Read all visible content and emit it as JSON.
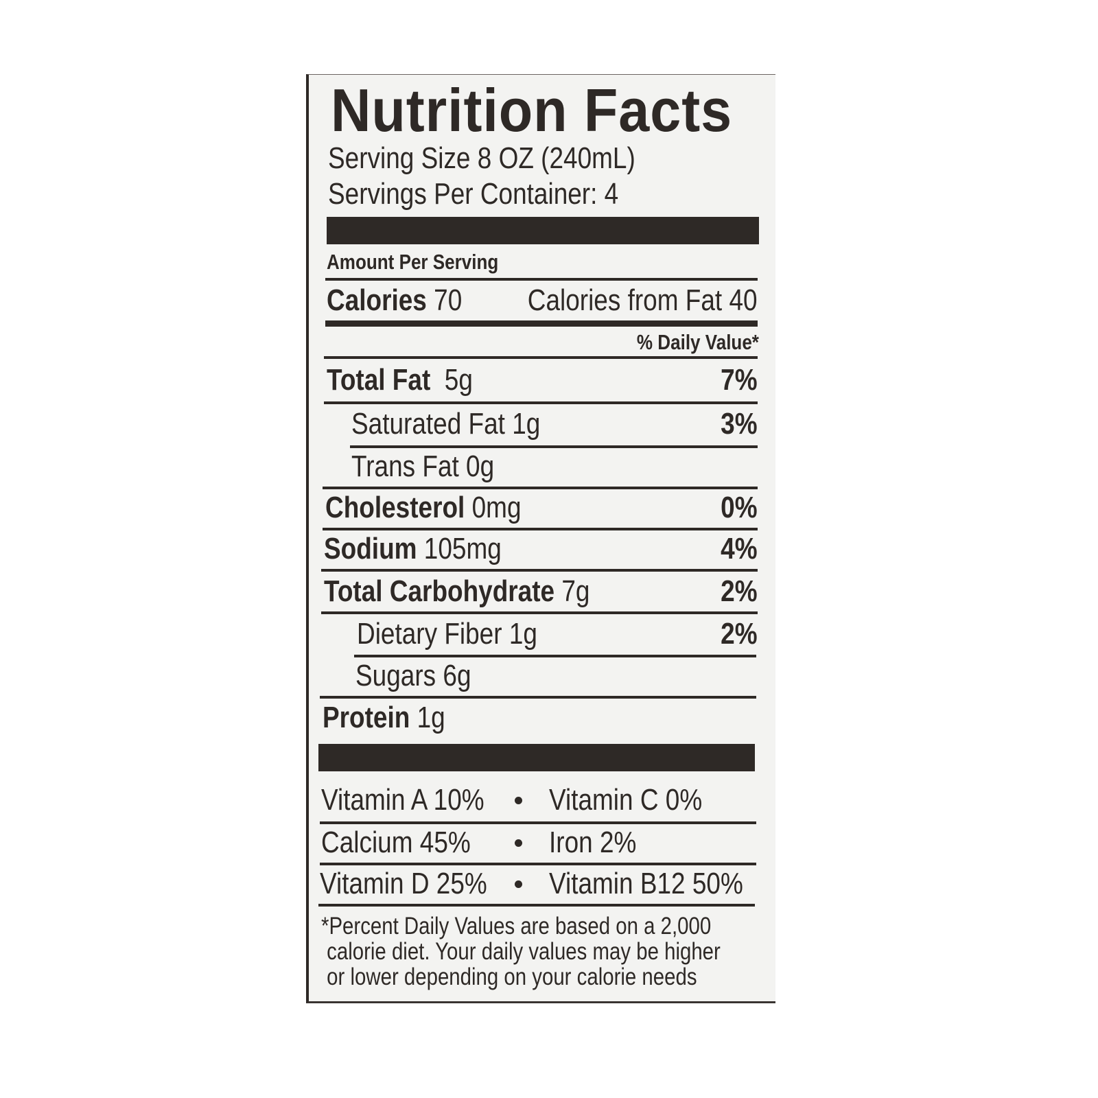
{
  "title": "Nutrition Facts",
  "serving_size": "Serving Size 8 OZ (240mL)",
  "servings_per_container": "Servings Per Container: 4",
  "amount_per_serving": "Amount Per Serving",
  "calories": {
    "label": "Calories",
    "value": "70",
    "from_fat": "Calories from Fat 40"
  },
  "daily_value_header": "% Daily Value*",
  "nutrients": [
    {
      "name": "Total Fat",
      "amount": "5g",
      "dv": "7%"
    },
    {
      "name": "Saturated Fat",
      "amount": "1g",
      "dv": "3%"
    },
    {
      "name": "Trans Fat",
      "amount": "0g",
      "dv": ""
    },
    {
      "name": "Cholesterol",
      "amount": "0mg",
      "dv": "0%"
    },
    {
      "name": "Sodium",
      "amount": "105mg",
      "dv": "4%"
    },
    {
      "name": "Total Carbohydrate",
      "amount": "7g",
      "dv": "2%"
    },
    {
      "name": "Dietary Fiber",
      "amount": "1g",
      "dv": "2%"
    },
    {
      "name": "Sugars",
      "amount": "6g",
      "dv": ""
    },
    {
      "name": "Protein",
      "amount": "1g",
      "dv": ""
    }
  ],
  "vitamins": [
    {
      "left": "Vitamin A 10%",
      "right": "Vitamin C 0%"
    },
    {
      "left": "Calcium 45%",
      "right": "Iron 2%"
    },
    {
      "left": "Vitamin D 25%",
      "right": "Vitamin B12 50%"
    }
  ],
  "footnote": [
    "*Percent Daily Values are based on a 2,000",
    " calorie diet. Your daily values may be higher",
    " or lower depending on your calorie needs"
  ]
}
